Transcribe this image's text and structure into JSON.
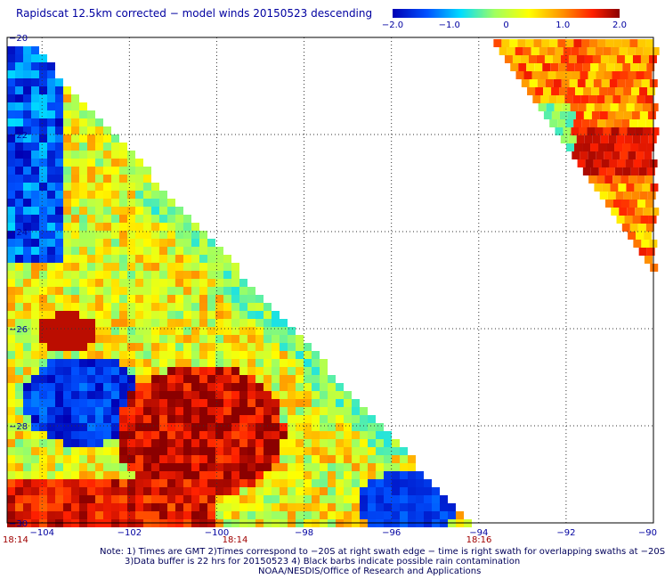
{
  "title": "Rapidscat 12.5km corrected − model winds 20150523 descending",
  "colorbar": {
    "ticks": [
      "−2.0",
      "−1.0",
      "0",
      "1.0",
      "2.0"
    ],
    "values": [
      -2.0,
      -1.0,
      0,
      1.0,
      2.0
    ],
    "min": -2.0,
    "max": 2.0,
    "colors": [
      "#0000b4",
      "#0050ff",
      "#00dcff",
      "#a0ff60",
      "#ffff00",
      "#ff9000",
      "#ff2000",
      "#8b0000"
    ]
  },
  "axes": {
    "lon_labels": [
      "−104",
      "−102",
      "−100",
      "−98",
      "−96",
      "−94",
      "−92",
      "−90"
    ],
    "lon_values": [
      -104,
      -102,
      -100,
      -98,
      -96,
      -94,
      -92,
      -90
    ],
    "lat_labels": [
      "−20",
      "−22",
      "−24",
      "−26",
      "−28",
      "−30"
    ],
    "lat_values": [
      -20,
      -22,
      -24,
      -26,
      -28,
      -30
    ],
    "lon_range": [
      -104.8,
      -90
    ],
    "lat_range": [
      -30,
      -20
    ],
    "grid": "dotted"
  },
  "times": [
    "18:14",
    "18:14",
    "18:16"
  ],
  "notes": [
    "Note: 1) Times are GMT 2)Times correspond to −20S at right swath edge − time is right swath for overlapping swaths at −20S",
    "3)Data buffer is 22 hrs for 20150523 4) Black barbs indicate possible rain contamination",
    "NOAA/NESDIS/Office of Research and Applications"
  ]
}
